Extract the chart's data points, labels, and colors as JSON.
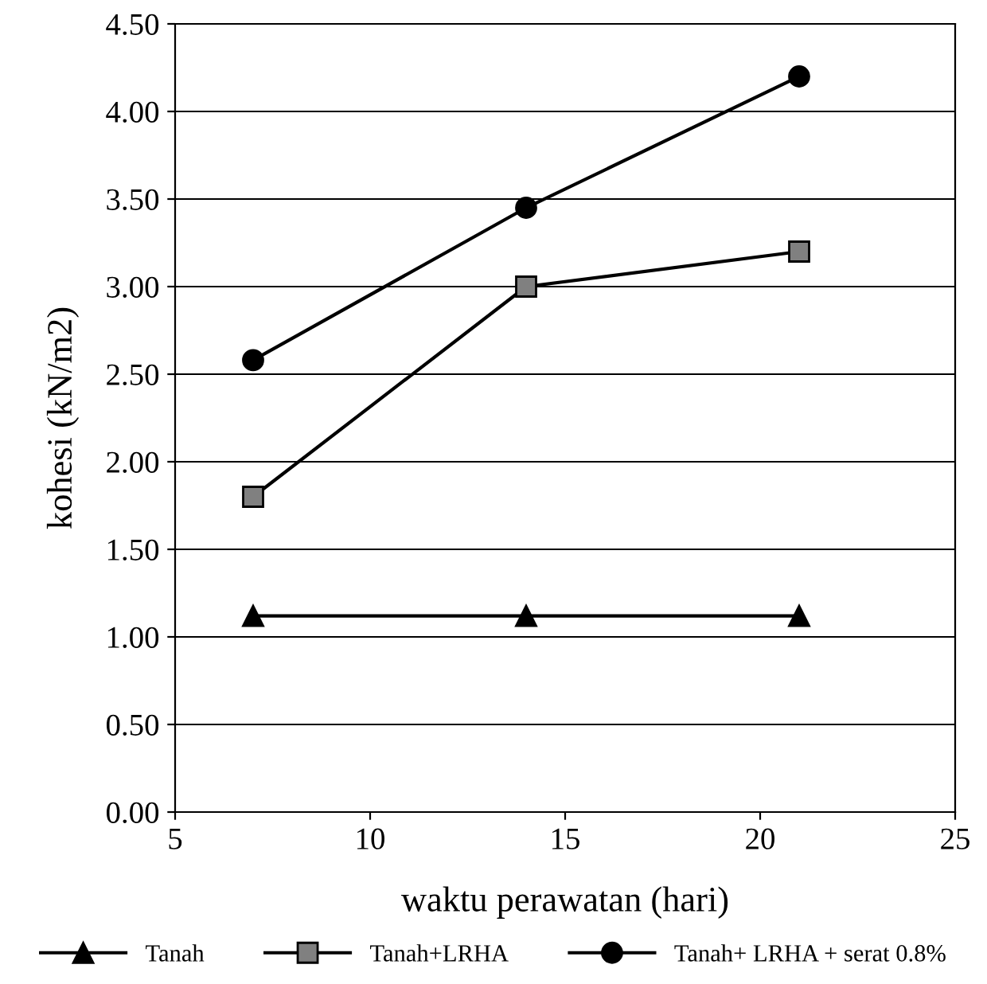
{
  "chart_data": {
    "type": "line",
    "xlabel": "waktu perawatan (hari)",
    "ylabel": "kohesi (kN/m2)",
    "x": [
      7,
      14,
      21
    ],
    "series": [
      {
        "name": "Tanah",
        "color": "#000000",
        "marker": "triangle",
        "values": [
          1.12,
          1.12,
          1.12
        ]
      },
      {
        "name": "Tanah+LRHA",
        "color": "#808080",
        "marker": "square",
        "values": [
          1.8,
          3.0,
          3.2
        ]
      },
      {
        "name": "Tanah+ LRHA + serat 0.8%",
        "color": "#000000",
        "marker": "circle",
        "values": [
          2.58,
          3.45,
          4.2
        ]
      }
    ],
    "xlim": [
      5,
      25
    ],
    "xticks": [
      5,
      10,
      15,
      20,
      25
    ],
    "ylim": [
      0,
      4.5
    ],
    "yticks": [
      {
        "value": 0,
        "label": "0.00"
      },
      {
        "value": 0.5,
        "label": "0.50"
      },
      {
        "value": 1,
        "label": "1.00"
      },
      {
        "value": 1.5,
        "label": "1.50"
      },
      {
        "value": 2,
        "label": "2.00"
      },
      {
        "value": 2.5,
        "label": "2.50"
      },
      {
        "value": 3,
        "label": "3.00"
      },
      {
        "value": 3.5,
        "label": "3.50"
      },
      {
        "value": 4,
        "label": "4.00"
      },
      {
        "value": 4.5,
        "label": "4.50"
      }
    ],
    "grid": "y",
    "legend": "bottom",
    "line_style": "solid"
  }
}
